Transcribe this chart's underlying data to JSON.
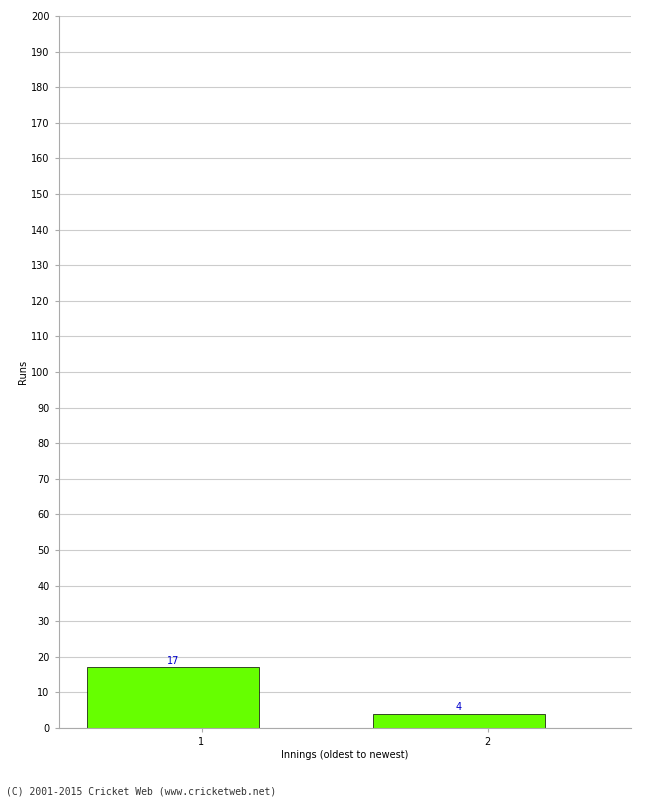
{
  "categories": [
    1,
    2
  ],
  "values": [
    17,
    4
  ],
  "bar_color": "#66ff00",
  "bar_edge_color": "#000000",
  "ylabel": "Runs",
  "xlabel": "Innings (oldest to newest)",
  "ylim": [
    0,
    200
  ],
  "yticks": [
    0,
    10,
    20,
    30,
    40,
    50,
    60,
    70,
    80,
    90,
    100,
    110,
    120,
    130,
    140,
    150,
    160,
    170,
    180,
    190,
    200
  ],
  "label_color": "#0000cc",
  "label_fontsize": 7,
  "axis_fontsize": 7,
  "xlabel_fontsize": 7,
  "ylabel_fontsize": 7,
  "footer": "(C) 2001-2015 Cricket Web (www.cricketweb.net)",
  "footer_fontsize": 7,
  "background_color": "#ffffff",
  "grid_color": "#cccccc",
  "bar_width": 0.6
}
